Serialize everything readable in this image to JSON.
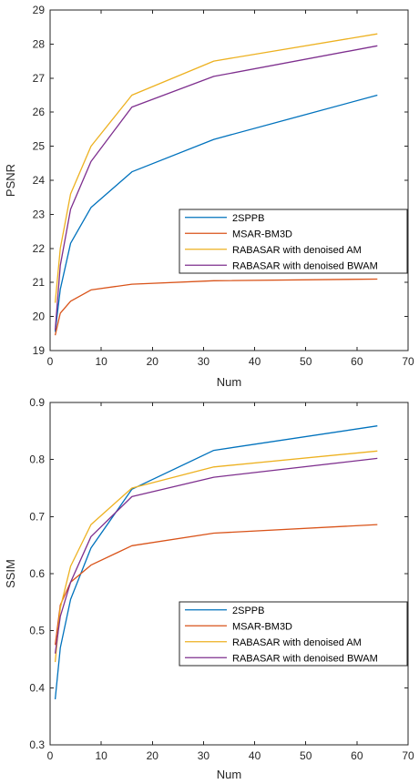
{
  "chart_data": [
    {
      "type": "line",
      "xlabel": "Num",
      "ylabel": "PSNR",
      "xlim": [
        0,
        70
      ],
      "ylim": [
        19,
        29
      ],
      "xticks": [
        "0",
        "10",
        "20",
        "30",
        "40",
        "50",
        "60",
        "70"
      ],
      "yticks": [
        "19",
        "20",
        "21",
        "22",
        "23",
        "24",
        "25",
        "26",
        "27",
        "28",
        "29"
      ],
      "grid": false,
      "legend_position": "lower-right",
      "x": [
        1,
        2,
        4,
        8,
        16,
        32,
        64
      ],
      "series": [
        {
          "name": "2SPPB",
          "color": "#0072BD",
          "values": [
            19.55,
            20.8,
            22.15,
            23.2,
            24.25,
            25.2,
            26.5
          ]
        },
        {
          "name": "MSAR-BM3D",
          "color": "#D95319",
          "values": [
            19.45,
            20.1,
            20.45,
            20.78,
            20.95,
            21.05,
            21.1
          ]
        },
        {
          "name": "RABASAR with denoised AM",
          "color": "#EDB120",
          "values": [
            20.4,
            22.0,
            23.6,
            25.0,
            26.5,
            27.5,
            28.3
          ]
        },
        {
          "name": "RABASAR with denoised BWAM",
          "color": "#7E2F8E",
          "values": [
            19.6,
            21.5,
            23.15,
            24.55,
            26.15,
            27.05,
            27.95
          ]
        }
      ]
    },
    {
      "type": "line",
      "xlabel": "Num",
      "ylabel": "SSIM",
      "xlim": [
        0,
        70
      ],
      "ylim": [
        0.3,
        0.9
      ],
      "xticks": [
        "0",
        "10",
        "20",
        "30",
        "40",
        "50",
        "60",
        "70"
      ],
      "yticks": [
        "0.3",
        "0.4",
        "0.5",
        "0.6",
        "0.7",
        "0.8",
        "0.9"
      ],
      "grid": false,
      "legend_position": "lower-right",
      "x": [
        1,
        2,
        4,
        8,
        16,
        32,
        64
      ],
      "series": [
        {
          "name": "2SPPB",
          "color": "#0072BD",
          "values": [
            0.38,
            0.47,
            0.555,
            0.645,
            0.748,
            0.816,
            0.859
          ]
        },
        {
          "name": "MSAR-BM3D",
          "color": "#D95319",
          "values": [
            0.475,
            0.545,
            0.585,
            0.615,
            0.649,
            0.671,
            0.686
          ]
        },
        {
          "name": "RABASAR with denoised AM",
          "color": "#EDB120",
          "values": [
            0.445,
            0.54,
            0.613,
            0.686,
            0.75,
            0.787,
            0.815
          ]
        },
        {
          "name": "RABASAR with denoised BWAM",
          "color": "#7E2F8E",
          "values": [
            0.46,
            0.525,
            0.585,
            0.665,
            0.735,
            0.769,
            0.802
          ]
        }
      ]
    }
  ]
}
